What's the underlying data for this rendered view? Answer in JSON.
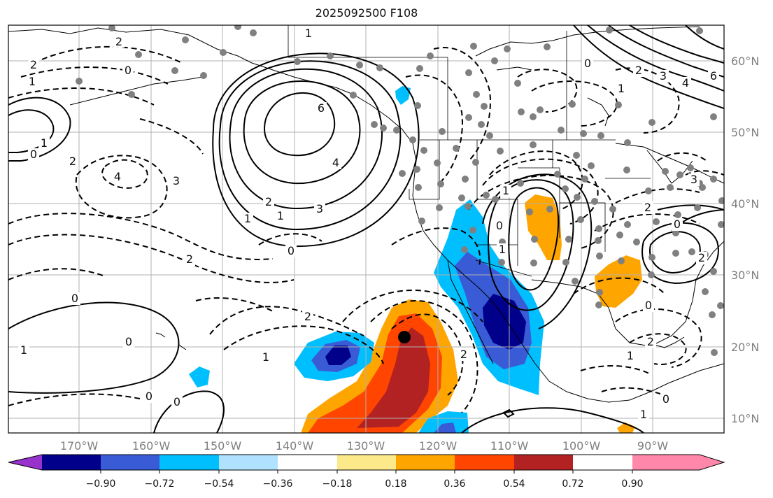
{
  "title": "2025092500 F108",
  "lon_labels": [
    "170°W",
    "160°W",
    "150°W",
    "140°W",
    "130°W",
    "120°W",
    "110°W",
    "100°W",
    "90°W"
  ],
  "lat_labels": [
    "60°N",
    "50°N",
    "40°N",
    "30°N",
    "20°N",
    "10°N"
  ],
  "colorbar": {
    "ticks": [
      "−0.90",
      "−0.72",
      "−0.54",
      "−0.36",
      "−0.18",
      "0.18",
      "0.36",
      "0.54",
      "0.72",
      "0.90"
    ],
    "colors": [
      "#9932cc",
      "#00008b",
      "#3a5bd6",
      "#00bfff",
      "#b0e2ff",
      "#ffffff",
      "#fce98a",
      "#ffa500",
      "#ff4500",
      "#b22222",
      "#ff88aa"
    ]
  },
  "contour_labels": [
    "1",
    "2",
    "0",
    "1",
    "2",
    "0",
    "1",
    "6",
    "4",
    "3",
    "2",
    "1",
    "0",
    "4",
    "3",
    "2",
    "0",
    "2",
    "1",
    "0",
    "0",
    "1",
    "0",
    "2",
    "1",
    "1",
    "2",
    "0",
    "2",
    "0",
    "6",
    "4",
    "3",
    "2",
    "1",
    "0",
    "3",
    "2",
    "1",
    "0",
    "1",
    "0",
    "2",
    "1"
  ]
}
